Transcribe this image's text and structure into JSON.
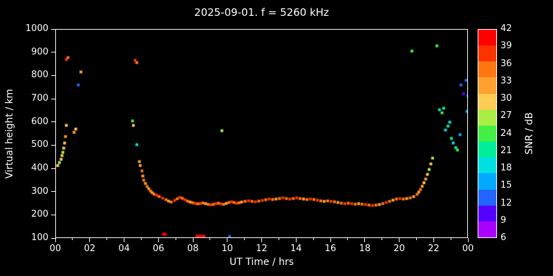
{
  "chart_data": {
    "type": "scatter",
    "title": "2025-09-01. f = 5260 kHz",
    "xlabel": "UT Time / hrs",
    "ylabel": "Virtual height / km",
    "xlim": [
      0,
      24
    ],
    "ylim": [
      100,
      1000
    ],
    "grid": false,
    "background_color": "#000000",
    "frame_color": "#ffffff",
    "text_color": "#ffffff",
    "x_ticks": [
      0,
      2,
      4,
      6,
      8,
      10,
      12,
      14,
      16,
      18,
      20,
      22,
      24
    ],
    "x_tick_labels": [
      "00",
      "02",
      "04",
      "06",
      "08",
      "10",
      "12",
      "14",
      "16",
      "18",
      "20",
      "22",
      "00"
    ],
    "y_ticks": [
      100,
      200,
      300,
      400,
      500,
      600,
      700,
      800,
      900,
      1000
    ],
    "y_tick_labels": [
      "100",
      "200",
      "300",
      "400",
      "500",
      "600",
      "700",
      "800",
      "900",
      "1000"
    ],
    "colorbar": {
      "label": "SNR / dB",
      "ticks": [
        6,
        9,
        12,
        15,
        18,
        21,
        24,
        27,
        30,
        33,
        36,
        39,
        42
      ],
      "colors": [
        "#aa00ff",
        "#5500ff",
        "#2266ff",
        "#00aaff",
        "#00e0e0",
        "#00ee99",
        "#44ee44",
        "#aaee44",
        "#ffcc55",
        "#ffa030",
        "#ff7711",
        "#ff3300",
        "#ff0000"
      ]
    },
    "points_format": [
      "ut_hours",
      "virtual_height_km",
      "snr_db"
    ],
    "points": [
      [
        0.1,
        415,
        30
      ],
      [
        0.2,
        428,
        27
      ],
      [
        0.3,
        442,
        30
      ],
      [
        0.35,
        458,
        30
      ],
      [
        0.4,
        472,
        27
      ],
      [
        0.45,
        490,
        30
      ],
      [
        0.5,
        512,
        30
      ],
      [
        0.55,
        540,
        33
      ],
      [
        0.6,
        588,
        30
      ],
      [
        0.6,
        872,
        39
      ],
      [
        0.7,
        880,
        36
      ],
      [
        1.05,
        558,
        33
      ],
      [
        1.15,
        572,
        30
      ],
      [
        1.3,
        762,
        12
      ],
      [
        1.45,
        818,
        33
      ],
      [
        4.45,
        607,
        24
      ],
      [
        4.5,
        588,
        30
      ],
      [
        4.6,
        868,
        39
      ],
      [
        4.7,
        858,
        36
      ],
      [
        4.7,
        505,
        18
      ],
      [
        4.85,
        432,
        33
      ],
      [
        4.9,
        415,
        33
      ],
      [
        5.0,
        392,
        36
      ],
      [
        5.05,
        370,
        33
      ],
      [
        5.1,
        352,
        36
      ],
      [
        5.2,
        338,
        33
      ],
      [
        5.3,
        325,
        36
      ],
      [
        5.4,
        315,
        33
      ],
      [
        5.5,
        305,
        36
      ],
      [
        5.6,
        298,
        33
      ],
      [
        5.7,
        292,
        36
      ],
      [
        5.85,
        288,
        39
      ],
      [
        6.0,
        282,
        36
      ],
      [
        6.2,
        275,
        39
      ],
      [
        6.4,
        268,
        36
      ],
      [
        6.55,
        262,
        33
      ],
      [
        6.7,
        258,
        36
      ],
      [
        6.9,
        265,
        39
      ],
      [
        7.05,
        272,
        36
      ],
      [
        7.2,
        278,
        39
      ],
      [
        7.35,
        274,
        36
      ],
      [
        7.5,
        268,
        39
      ],
      [
        7.65,
        262,
        36
      ],
      [
        7.8,
        258,
        33
      ],
      [
        7.95,
        255,
        36
      ],
      [
        8.1,
        252,
        39
      ],
      [
        8.25,
        250,
        36
      ],
      [
        8.4,
        252,
        39
      ],
      [
        8.55,
        254,
        36
      ],
      [
        8.7,
        251,
        33
      ],
      [
        8.85,
        248,
        36
      ],
      [
        9.0,
        246,
        39
      ],
      [
        9.15,
        248,
        36
      ],
      [
        9.3,
        251,
        39
      ],
      [
        9.45,
        253,
        36
      ],
      [
        9.6,
        250,
        39
      ],
      [
        9.75,
        248,
        36
      ],
      [
        9.9,
        252,
        33
      ],
      [
        10.05,
        256,
        36
      ],
      [
        10.2,
        259,
        39
      ],
      [
        10.35,
        256,
        36
      ],
      [
        10.5,
        253,
        39
      ],
      [
        10.65,
        255,
        36
      ],
      [
        10.8,
        258,
        33
      ],
      [
        11.0,
        261,
        36
      ],
      [
        11.2,
        263,
        39
      ],
      [
        11.4,
        261,
        36
      ],
      [
        11.6,
        259,
        39
      ],
      [
        11.8,
        262,
        36
      ],
      [
        12.0,
        265,
        39
      ],
      [
        12.2,
        268,
        36
      ],
      [
        12.4,
        271,
        39
      ],
      [
        12.6,
        269,
        36
      ],
      [
        12.8,
        271,
        33
      ],
      [
        13.0,
        273,
        36
      ],
      [
        13.2,
        276,
        39
      ],
      [
        13.4,
        273,
        36
      ],
      [
        13.6,
        271,
        39
      ],
      [
        13.8,
        273,
        36
      ],
      [
        14.0,
        276,
        39
      ],
      [
        14.2,
        273,
        36
      ],
      [
        14.4,
        271,
        33
      ],
      [
        14.6,
        269,
        36
      ],
      [
        14.8,
        271,
        39
      ],
      [
        15.0,
        269,
        36
      ],
      [
        15.2,
        266,
        39
      ],
      [
        15.4,
        263,
        36
      ],
      [
        15.6,
        261,
        33
      ],
      [
        15.8,
        263,
        36
      ],
      [
        16.0,
        261,
        39
      ],
      [
        16.2,
        259,
        36
      ],
      [
        16.4,
        256,
        33
      ],
      [
        16.6,
        253,
        36
      ],
      [
        16.8,
        251,
        39
      ],
      [
        17.0,
        253,
        36
      ],
      [
        17.2,
        251,
        39
      ],
      [
        17.4,
        249,
        36
      ],
      [
        17.6,
        251,
        33
      ],
      [
        17.8,
        249,
        36
      ],
      [
        18.0,
        247,
        39
      ],
      [
        18.2,
        245,
        36
      ],
      [
        18.4,
        243,
        39
      ],
      [
        18.6,
        245,
        36
      ],
      [
        18.8,
        247,
        33
      ],
      [
        19.0,
        251,
        36
      ],
      [
        19.2,
        256,
        39
      ],
      [
        19.4,
        261,
        36
      ],
      [
        19.6,
        266,
        33
      ],
      [
        19.8,
        271,
        36
      ],
      [
        20.0,
        273,
        39
      ],
      [
        20.2,
        271,
        36
      ],
      [
        20.4,
        273,
        33
      ],
      [
        20.6,
        276,
        36
      ],
      [
        20.8,
        281,
        33
      ],
      [
        21.0,
        291,
        36
      ],
      [
        21.1,
        301,
        33
      ],
      [
        21.2,
        312,
        36
      ],
      [
        21.3,
        326,
        33
      ],
      [
        21.4,
        341,
        30
      ],
      [
        21.5,
        357,
        33
      ],
      [
        21.6,
        377,
        30
      ],
      [
        21.7,
        398,
        27
      ],
      [
        21.8,
        422,
        30
      ],
      [
        21.9,
        447,
        27
      ],
      [
        6.25,
        120,
        42
      ],
      [
        6.35,
        118,
        42
      ],
      [
        8.2,
        112,
        42
      ],
      [
        8.3,
        110,
        42
      ],
      [
        8.4,
        111,
        42
      ],
      [
        8.5,
        110,
        42
      ],
      [
        8.6,
        112,
        42
      ],
      [
        10.1,
        110,
        12
      ],
      [
        9.65,
        565,
        27
      ],
      [
        20.7,
        908,
        24
      ],
      [
        22.15,
        930,
        24
      ],
      [
        22.3,
        655,
        21
      ],
      [
        22.45,
        642,
        24
      ],
      [
        22.55,
        662,
        21
      ],
      [
        22.65,
        568,
        18
      ],
      [
        22.8,
        585,
        21
      ],
      [
        22.9,
        602,
        18
      ],
      [
        23.0,
        532,
        21
      ],
      [
        23.1,
        512,
        18
      ],
      [
        23.25,
        492,
        21
      ],
      [
        23.35,
        482,
        24
      ],
      [
        23.5,
        548,
        15
      ],
      [
        23.55,
        762,
        12
      ],
      [
        23.7,
        724,
        9
      ],
      [
        23.85,
        782,
        12
      ],
      [
        23.9,
        648,
        15
      ],
      [
        23.95,
        715,
        12
      ]
    ]
  }
}
